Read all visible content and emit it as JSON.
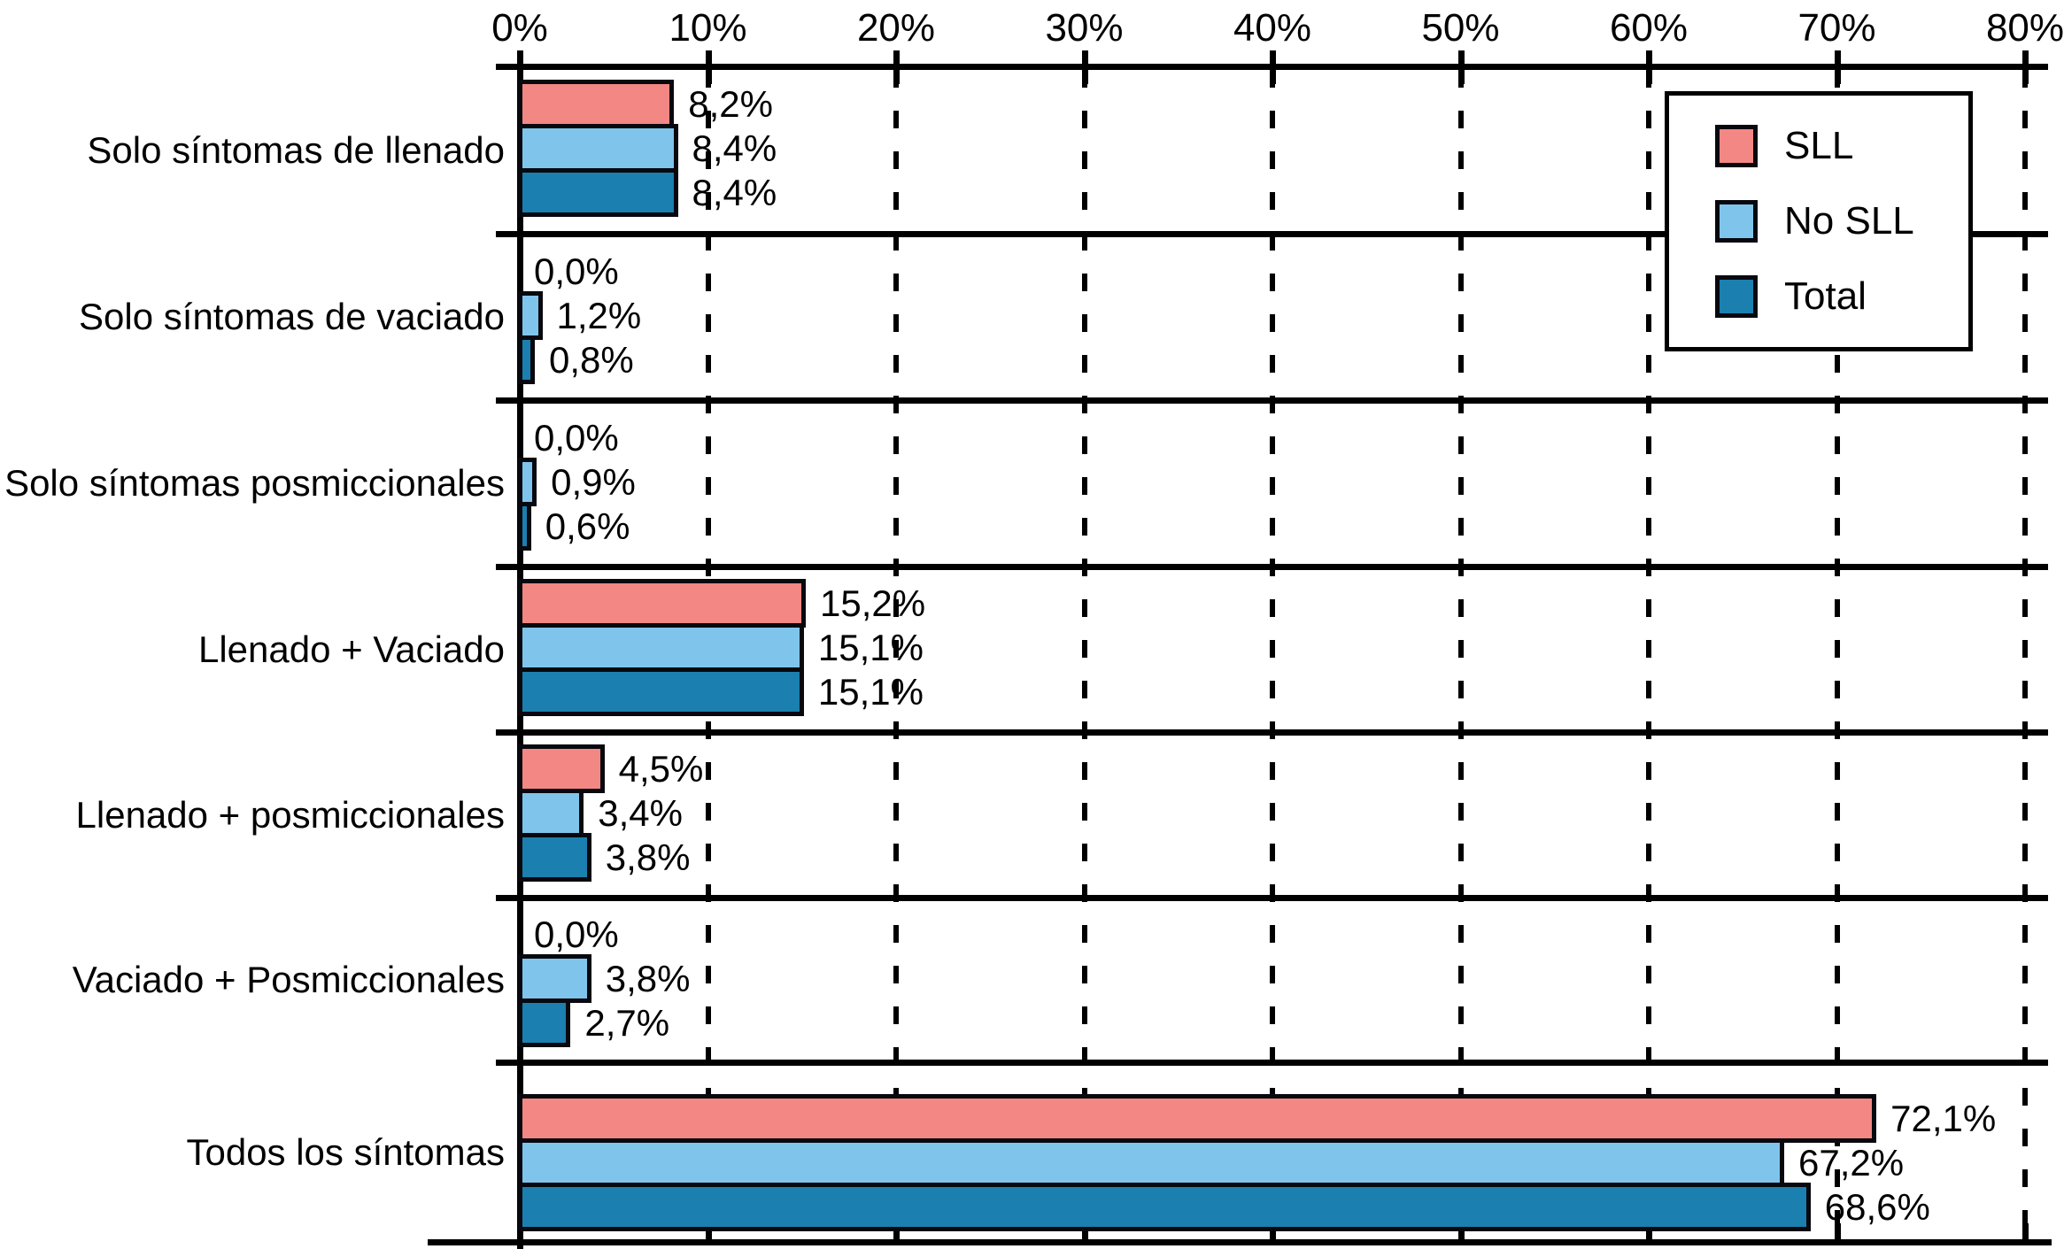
{
  "chart_data": {
    "type": "bar",
    "orientation": "horizontal",
    "title": "",
    "categories": [
      "Solo síntomas de llenado",
      "Solo síntomas de vaciado",
      "Solo síntomas posmiccionales",
      "Llenado + Vaciado",
      "Llenado + posmiccionales",
      "Vaciado + Posmiccionales",
      "Todos los síntomas"
    ],
    "series": [
      {
        "name": "SLL",
        "color": "#F38783",
        "values": [
          8.2,
          0.0,
          0.0,
          15.2,
          4.5,
          0.0,
          72.1
        ]
      },
      {
        "name": "No SLL",
        "color": "#7FC5EB",
        "values": [
          8.4,
          1.2,
          0.9,
          15.1,
          3.4,
          3.8,
          67.2
        ]
      },
      {
        "name": "Total",
        "color": "#1B7FAF",
        "values": [
          8.4,
          0.8,
          0.6,
          15.1,
          3.8,
          2.7,
          68.6
        ]
      }
    ],
    "value_labels": [
      [
        "8,2%",
        "0,0%",
        "0,0%",
        "15,2%",
        "4,5%",
        "0,0%",
        "72,1%"
      ],
      [
        "8,4%",
        "1,2%",
        "0,9%",
        "15,1%",
        "3,4%",
        "3,8%",
        "67,2%"
      ],
      [
        "8,4%",
        "0,8%",
        "0,6%",
        "15,1%",
        "3,8%",
        "2,7%",
        "68,6%"
      ]
    ],
    "x_axis": {
      "min": 0,
      "max": 80,
      "tick_labels": [
        "0%",
        "10%",
        "20%",
        "30%",
        "40%",
        "50%",
        "60%",
        "70%",
        "80%"
      ],
      "grid": "dashed-vertical"
    },
    "legend": {
      "position": "top-right",
      "entries": [
        {
          "label": "SLL",
          "color": "#F38783"
        },
        {
          "label": "No SLL",
          "color": "#7FC5EB"
        },
        {
          "label": "Total",
          "color": "#1B7FAF"
        }
      ]
    }
  }
}
